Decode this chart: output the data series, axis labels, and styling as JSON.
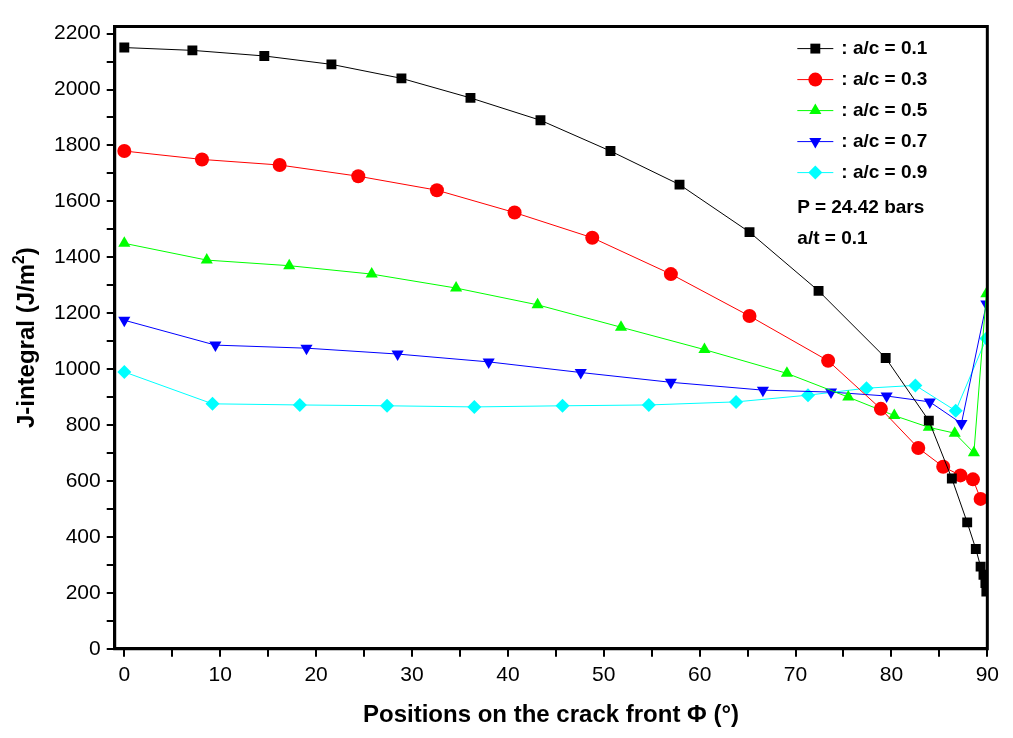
{
  "chart_data": {
    "type": "line",
    "xlabel": "Positions on the crack front Φ (°)",
    "ylabel": "J-integral (J/m$^{2}$)",
    "xlim": [
      -1,
      90
    ],
    "xticks": [
      0,
      {
        "value": 5,
        "label": null
      },
      10,
      {
        "value": 15,
        "label": null
      },
      20,
      {
        "value": 25,
        "label": null
      },
      30,
      {
        "value": 35,
        "label": null
      },
      40,
      {
        "value": 45,
        "label": null
      },
      50,
      {
        "value": 55,
        "label": null
      },
      60,
      {
        "value": 65,
        "label": null
      },
      70,
      {
        "value": 75,
        "label": null
      },
      80,
      {
        "value": 85,
        "label": null
      },
      90
    ],
    "ylim": [
      0,
      2225
    ],
    "yticks": [
      0,
      {
        "value": 100,
        "label": null
      },
      200,
      {
        "value": 300,
        "label": null
      },
      400,
      {
        "value": 500,
        "label": null
      },
      600,
      {
        "value": 700,
        "label": null
      },
      800,
      {
        "value": 900,
        "label": null
      },
      1000,
      {
        "value": 1100,
        "label": null
      },
      1200,
      {
        "value": 1300,
        "label": null
      },
      1400,
      {
        "value": 1500,
        "label": null
      },
      1600,
      {
        "value": 1700,
        "label": null
      },
      1800,
      {
        "value": 1900,
        "label": null
      },
      2000,
      {
        "value": 2100,
        "label": null
      },
      2200
    ],
    "grid": false,
    "legend": "top right",
    "line_style": "solid",
    "annotations": [
      "P = 24.42 bars",
      "a/t = 0.1"
    ],
    "series": [
      {
        "name": ": a/c = 0.1",
        "color": "#000000",
        "marker": "square",
        "x": [
          0,
          7.1,
          14.6,
          21.6,
          28.9,
          36.1,
          43.4,
          50.7,
          57.9,
          65.2,
          72.4,
          79.4,
          83.9,
          86.3,
          87.9,
          88.8,
          89.3,
          89.6,
          89.8,
          89.9
        ],
        "values": [
          2150,
          2140,
          2120,
          2090,
          2040,
          1970,
          1890,
          1780,
          1660,
          1490,
          1280,
          1040,
          816,
          609,
          452,
          357,
          294,
          265,
          235,
          205
        ]
      },
      {
        "name": ": a/c = 0.3",
        "color": "#ff0000",
        "marker": "circle",
        "x": [
          0,
          8.1,
          16.2,
          24.4,
          32.6,
          40.7,
          48.8,
          57.0,
          65.2,
          73.4,
          78.9,
          82.8,
          85.4,
          87.2,
          88.5,
          89.3
        ],
        "values": [
          1780,
          1750,
          1730,
          1690,
          1640,
          1560,
          1470,
          1340,
          1190,
          1030,
          858,
          718,
          651,
          620,
          606,
          536
        ]
      },
      {
        "name": ": a/c = 0.5",
        "color": "#00ff00",
        "marker": "triangle",
        "x": [
          0,
          8.6,
          17.2,
          25.8,
          34.6,
          43.1,
          51.8,
          60.5,
          69.1,
          75.5,
          80.3,
          83.9,
          86.6,
          88.6,
          89.9
        ],
        "values": [
          1450,
          1390,
          1370,
          1340,
          1290,
          1230,
          1150,
          1070,
          985,
          900,
          834,
          792,
          771,
          701,
          1270
        ]
      },
      {
        "name": ": a/c = 0.7",
        "color": "#0000ff",
        "marker": "triangle_down",
        "x": [
          0,
          9.5,
          19.0,
          28.5,
          38.0,
          47.6,
          57.0,
          66.6,
          73.7,
          79.5,
          84.0,
          87.3,
          89.9
        ],
        "values": [
          1175,
          1086,
          1075,
          1054,
          1026,
          988,
          953,
          925,
          918,
          904,
          883,
          806,
          1233
        ]
      },
      {
        "name": ": a/c = 0.9",
        "color": "#00ffff",
        "marker": "diamond",
        "x": [
          0,
          9.2,
          18.3,
          27.4,
          36.5,
          45.7,
          54.7,
          63.8,
          71.3,
          77.4,
          82.5,
          86.7,
          89.9
        ],
        "values": [
          990,
          876,
          872,
          869,
          865,
          869,
          872,
          883,
          907,
          932,
          942,
          851,
          1110
        ]
      }
    ]
  }
}
